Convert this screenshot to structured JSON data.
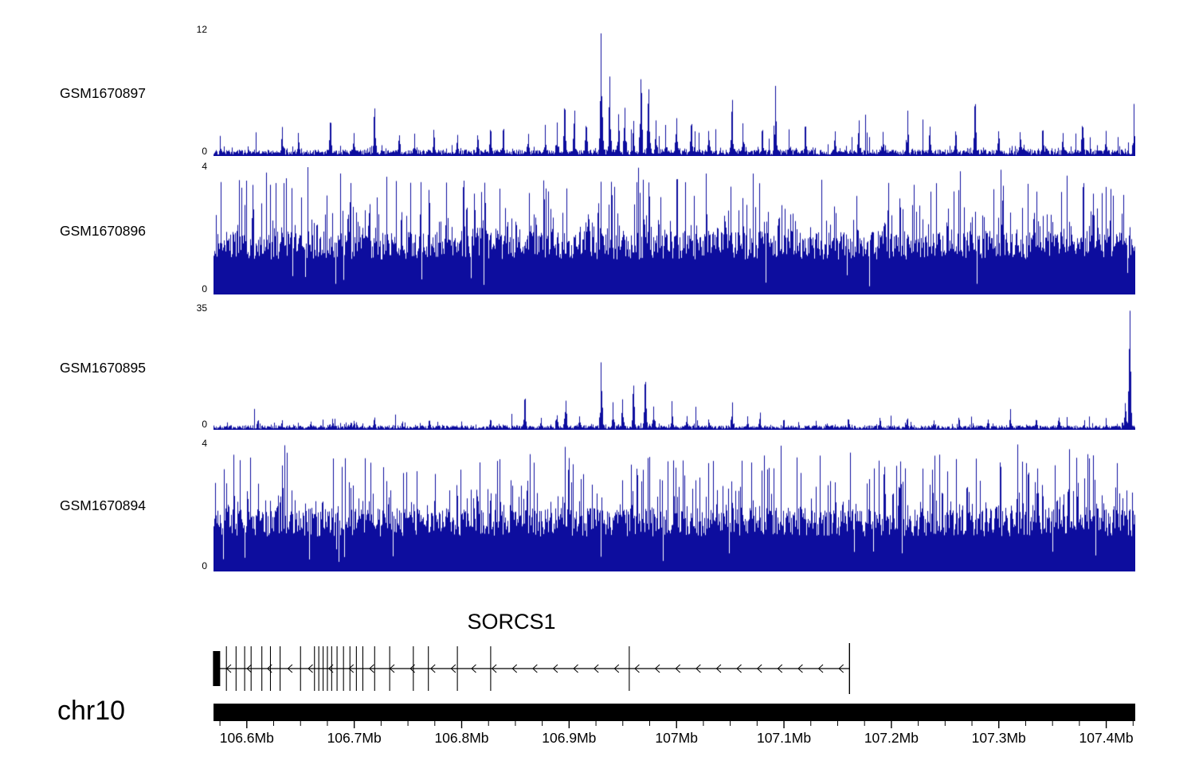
{
  "colors": {
    "signal": "#0d0d9e",
    "ink": "#000000"
  },
  "chart_data": {
    "type": "bar",
    "subtype": "genome-coverage-tracks",
    "title": "",
    "region": {
      "chrom": "chr10",
      "start_mb": 106.569,
      "end_mb": 107.427
    },
    "tracks": [
      {
        "name": "GSM1670897",
        "ymax": 12,
        "ymax_label": "12",
        "y0_label": "0",
        "style": "sparse",
        "seed": 101,
        "noise_base": 0.12,
        "noise_amp": 0.5,
        "bump_amp": 1.6,
        "peaks": [
          {
            "mb": 106.633,
            "h": 2.8
          },
          {
            "mb": 106.648,
            "h": 2.2
          },
          {
            "mb": 106.678,
            "h": 3.4
          },
          {
            "mb": 106.7,
            "h": 2.2
          },
          {
            "mb": 106.719,
            "h": 4.6
          },
          {
            "mb": 106.742,
            "h": 2.0
          },
          {
            "mb": 106.756,
            "h": 2.2
          },
          {
            "mb": 106.774,
            "h": 2.5
          },
          {
            "mb": 106.796,
            "h": 2.1
          },
          {
            "mb": 106.815,
            "h": 2.0
          },
          {
            "mb": 106.827,
            "h": 2.6
          },
          {
            "mb": 106.839,
            "h": 2.7
          },
          {
            "mb": 106.862,
            "h": 2.2
          },
          {
            "mb": 106.878,
            "h": 3.0
          },
          {
            "mb": 106.889,
            "h": 3.2
          },
          {
            "mb": 106.896,
            "h": 4.8
          },
          {
            "mb": 106.905,
            "h": 3.4
          },
          {
            "mb": 106.916,
            "h": 3.0
          },
          {
            "mb": 106.93,
            "h": 12
          },
          {
            "mb": 106.938,
            "h": 7.6
          },
          {
            "mb": 106.946,
            "h": 4.0
          },
          {
            "mb": 106.952,
            "h": 4.6
          },
          {
            "mb": 106.96,
            "h": 3.4
          },
          {
            "mb": 106.967,
            "h": 7.4
          },
          {
            "mb": 106.974,
            "h": 6.6
          },
          {
            "mb": 106.981,
            "h": 3.4
          },
          {
            "mb": 106.99,
            "h": 3.0
          },
          {
            "mb": 107.0,
            "h": 3.7
          },
          {
            "mb": 107.014,
            "h": 3.2
          },
          {
            "mb": 107.03,
            "h": 2.4
          },
          {
            "mb": 107.052,
            "h": 5.4
          },
          {
            "mb": 107.062,
            "h": 3.2
          },
          {
            "mb": 107.08,
            "h": 2.6
          },
          {
            "mb": 107.092,
            "h": 6.8
          },
          {
            "mb": 107.105,
            "h": 2.6
          },
          {
            "mb": 107.12,
            "h": 3.0
          },
          {
            "mb": 107.148,
            "h": 2.4
          },
          {
            "mb": 107.17,
            "h": 3.4
          },
          {
            "mb": 107.192,
            "h": 2.4
          },
          {
            "mb": 107.215,
            "h": 4.5
          },
          {
            "mb": 107.236,
            "h": 2.8
          },
          {
            "mb": 107.26,
            "h": 2.4
          },
          {
            "mb": 107.278,
            "h": 5.2
          },
          {
            "mb": 107.3,
            "h": 2.4
          },
          {
            "mb": 107.32,
            "h": 2.3
          },
          {
            "mb": 107.341,
            "h": 2.6
          },
          {
            "mb": 107.36,
            "h": 2.2
          },
          {
            "mb": 107.378,
            "h": 3.0
          },
          {
            "mb": 107.4,
            "h": 2.4
          },
          {
            "mb": 107.426,
            "h": 5.0
          }
        ]
      },
      {
        "name": "GSM1670896",
        "ymax": 4,
        "ymax_label": "4",
        "y0_label": "0",
        "style": "dense",
        "seed": 202,
        "noise_base": 1.1,
        "noise_amp": 0.9,
        "bump_amp": 1.0,
        "peaks": []
      },
      {
        "name": "GSM1670895",
        "ymax": 35,
        "ymax_label": "35",
        "y0_label": "0",
        "style": "sparse",
        "seed": 303,
        "noise_base": 0.3,
        "noise_amp": 1.0,
        "bump_amp": 3.0,
        "peaks": [
          {
            "mb": 106.61,
            "h": 2.5
          },
          {
            "mb": 106.633,
            "h": 2.8
          },
          {
            "mb": 106.66,
            "h": 2.4
          },
          {
            "mb": 106.68,
            "h": 3.2
          },
          {
            "mb": 106.7,
            "h": 2.6
          },
          {
            "mb": 106.719,
            "h": 3.6
          },
          {
            "mb": 106.745,
            "h": 2.4
          },
          {
            "mb": 106.77,
            "h": 2.8
          },
          {
            "mb": 106.8,
            "h": 2.4
          },
          {
            "mb": 106.827,
            "h": 3.0
          },
          {
            "mb": 106.859,
            "h": 9.5
          },
          {
            "mb": 106.874,
            "h": 3.5
          },
          {
            "mb": 106.889,
            "h": 4.2
          },
          {
            "mb": 106.897,
            "h": 8.5
          },
          {
            "mb": 106.91,
            "h": 4.0
          },
          {
            "mb": 106.93,
            "h": 20
          },
          {
            "mb": 106.941,
            "h": 8.0
          },
          {
            "mb": 106.95,
            "h": 9.0
          },
          {
            "mb": 106.96,
            "h": 13.0
          },
          {
            "mb": 106.971,
            "h": 14.5
          },
          {
            "mb": 106.979,
            "h": 7.0
          },
          {
            "mb": 106.996,
            "h": 8.5
          },
          {
            "mb": 107.01,
            "h": 4.0
          },
          {
            "mb": 107.03,
            "h": 3.0
          },
          {
            "mb": 107.052,
            "h": 8.0
          },
          {
            "mb": 107.066,
            "h": 4.0
          },
          {
            "mb": 107.078,
            "h": 5.0
          },
          {
            "mb": 107.1,
            "h": 3.0
          },
          {
            "mb": 107.13,
            "h": 2.6
          },
          {
            "mb": 107.16,
            "h": 3.2
          },
          {
            "mb": 107.19,
            "h": 2.6
          },
          {
            "mb": 107.215,
            "h": 3.4
          },
          {
            "mb": 107.24,
            "h": 2.8
          },
          {
            "mb": 107.263,
            "h": 3.6
          },
          {
            "mb": 107.29,
            "h": 3.0
          },
          {
            "mb": 107.311,
            "h": 6.0
          },
          {
            "mb": 107.335,
            "h": 3.0
          },
          {
            "mb": 107.356,
            "h": 3.6
          },
          {
            "mb": 107.38,
            "h": 2.8
          },
          {
            "mb": 107.4,
            "h": 3.4
          },
          {
            "mb": 107.418,
            "h": 8.0
          },
          {
            "mb": 107.422,
            "h": 35
          }
        ]
      },
      {
        "name": "GSM1670894",
        "ymax": 4,
        "ymax_label": "4",
        "y0_label": "0",
        "style": "dense",
        "seed": 404,
        "noise_base": 1.1,
        "noise_amp": 0.9,
        "bump_amp": 1.0,
        "peaks": []
      }
    ],
    "gene": {
      "label": "SORCS1",
      "strand": "-",
      "start_mb": 106.57,
      "end_mb": 107.161,
      "utr_mb": 106.5715,
      "arrow_spacing_mb": 0.019,
      "exons_mb": [
        106.581,
        106.59,
        106.598,
        106.604,
        106.614,
        106.622,
        106.631,
        106.65,
        106.663,
        106.667,
        106.671,
        106.675,
        106.679,
        106.684,
        106.69,
        106.696,
        106.702,
        106.708,
        106.719,
        106.733,
        106.755,
        106.769,
        106.796,
        106.827,
        106.956
      ]
    },
    "chromosome": {
      "label": "chr10",
      "minor_tick_step_mb": 0.025,
      "major_ticks": [
        {
          "mb": 106.6,
          "label": "106.6Mb"
        },
        {
          "mb": 106.7,
          "label": "106.7Mb"
        },
        {
          "mb": 106.8,
          "label": "106.8Mb"
        },
        {
          "mb": 106.9,
          "label": "106.9Mb"
        },
        {
          "mb": 107.0,
          "label": "107Mb"
        },
        {
          "mb": 107.1,
          "label": "107.1Mb"
        },
        {
          "mb": 107.2,
          "label": "107.2Mb"
        },
        {
          "mb": 107.3,
          "label": "107.3Mb"
        },
        {
          "mb": 107.4,
          "label": "107.4Mb"
        }
      ]
    }
  }
}
